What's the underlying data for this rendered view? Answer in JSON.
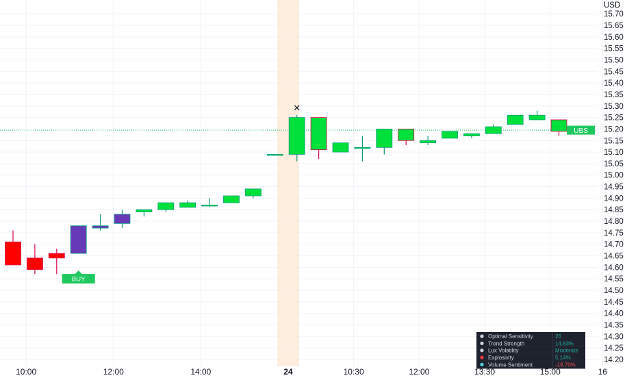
{
  "chart_data": {
    "type": "candlestick",
    "currency": "USD",
    "ylim": [
      14.17,
      15.76
    ],
    "y_ticks": [
      "15.70",
      "15.65",
      "15.60",
      "15.55",
      "15.50",
      "15.45",
      "15.40",
      "15.35",
      "15.30",
      "15.25",
      "15.20",
      "15.15",
      "15.10",
      "15.05",
      "15.00",
      "14.95",
      "14.90",
      "14.85",
      "14.80",
      "14.75",
      "14.70",
      "14.65",
      "14.60",
      "14.55",
      "14.50",
      "14.45",
      "14.40",
      "14.35",
      "14.30",
      "14.25",
      "14.20"
    ],
    "x_ticks": [
      {
        "label": "10:00",
        "index": 0.6,
        "bold": false
      },
      {
        "label": "12:00",
        "index": 4.6,
        "bold": false
      },
      {
        "label": "14:00",
        "index": 8.6,
        "bold": false
      },
      {
        "label": "24",
        "index": 12.6,
        "bold": true
      },
      {
        "label": "10:30",
        "index": 15.6,
        "bold": false
      },
      {
        "label": "12:00",
        "index": 18.6,
        "bold": false
      },
      {
        "label": "13:30",
        "index": 21.6,
        "bold": false
      },
      {
        "label": "15:00",
        "index": 24.6,
        "bold": false
      },
      {
        "label": "16",
        "index": 27.0,
        "bold": false
      }
    ],
    "session_break_index": 12.6,
    "candles": [
      {
        "o": 14.71,
        "h": 14.76,
        "l": 14.61,
        "c": 14.61,
        "color": "red"
      },
      {
        "o": 14.64,
        "h": 14.7,
        "l": 14.57,
        "c": 14.59,
        "color": "red"
      },
      {
        "o": 14.66,
        "h": 14.68,
        "l": 14.57,
        "c": 14.64,
        "color": "red"
      },
      {
        "o": 14.66,
        "h": 14.78,
        "l": 14.66,
        "c": 14.78,
        "color": "purple"
      },
      {
        "o": 14.77,
        "h": 14.83,
        "l": 14.76,
        "c": 14.78,
        "color": "purple"
      },
      {
        "o": 14.79,
        "h": 14.85,
        "l": 14.77,
        "c": 14.83,
        "color": "purple"
      },
      {
        "o": 14.84,
        "h": 14.85,
        "l": 14.82,
        "c": 14.85,
        "color": "green"
      },
      {
        "o": 14.85,
        "h": 14.88,
        "l": 14.84,
        "c": 14.88,
        "color": "green"
      },
      {
        "o": 14.86,
        "h": 14.89,
        "l": 14.86,
        "c": 14.88,
        "color": "green"
      },
      {
        "o": 14.87,
        "h": 14.9,
        "l": 14.86,
        "c": 14.87,
        "color": "green"
      },
      {
        "o": 14.88,
        "h": 14.91,
        "l": 14.88,
        "c": 14.91,
        "color": "green"
      },
      {
        "o": 14.91,
        "h": 14.94,
        "l": 14.9,
        "c": 14.94,
        "color": "green"
      },
      {
        "o": 15.09,
        "h": 15.09,
        "l": 15.09,
        "c": 15.09,
        "color": "green"
      },
      {
        "o": 15.09,
        "h": 15.26,
        "l": 15.06,
        "c": 15.25,
        "color": "green"
      },
      {
        "o": 15.25,
        "h": 15.25,
        "l": 15.07,
        "c": 15.11,
        "color": "green"
      },
      {
        "o": 15.1,
        "h": 15.14,
        "l": 15.1,
        "c": 15.14,
        "color": "green"
      },
      {
        "o": 15.12,
        "h": 15.17,
        "l": 15.06,
        "c": 15.12,
        "color": "green"
      },
      {
        "o": 15.12,
        "h": 15.2,
        "l": 15.09,
        "c": 15.2,
        "color": "green"
      },
      {
        "o": 15.2,
        "h": 15.2,
        "l": 15.13,
        "c": 15.15,
        "color": "green"
      },
      {
        "o": 15.14,
        "h": 15.17,
        "l": 15.13,
        "c": 15.15,
        "color": "green"
      },
      {
        "o": 15.16,
        "h": 15.19,
        "l": 15.16,
        "c": 15.19,
        "color": "green"
      },
      {
        "o": 15.17,
        "h": 15.18,
        "l": 15.16,
        "c": 15.18,
        "color": "green"
      },
      {
        "o": 15.18,
        "h": 15.22,
        "l": 15.18,
        "c": 15.21,
        "color": "green"
      },
      {
        "o": 15.22,
        "h": 15.26,
        "l": 15.22,
        "c": 15.26,
        "color": "green"
      },
      {
        "o": 15.24,
        "h": 15.28,
        "l": 15.24,
        "c": 15.26,
        "color": "green"
      },
      {
        "o": 15.24,
        "h": 15.24,
        "l": 15.17,
        "c": 15.19,
        "color": "green"
      }
    ],
    "colors": {
      "up": "#00e03a",
      "red": "#ff0000",
      "purple": "#673ab7",
      "down_wick": "#e0004d",
      "up_wick": "#089981"
    },
    "current_price_line": 15.195,
    "annotations": [
      {
        "text": "BUY",
        "candle_index": 3,
        "price": 14.55,
        "color": "#1ec85e"
      },
      {
        "text": "UBS",
        "price": 15.195,
        "color": "#1ec85e"
      },
      {
        "text": "✕",
        "candle_index": 13,
        "price": 15.29,
        "color": "#131722"
      }
    ]
  },
  "panel": {
    "rows": [
      {
        "icon": "sensitivity-icon",
        "label": "Optimal Sensitivity",
        "value": "26",
        "value_color": "#26a69a"
      },
      {
        "icon": "trend-icon",
        "label": "Trend Strength",
        "value": "14.83%",
        "value_color": "#26a69a"
      },
      {
        "icon": "volatility-icon",
        "label": "Lux Volatility",
        "value": "Moderate",
        "value_color": "#26a69a"
      },
      {
        "icon": "explosivity-icon",
        "label": "Explosivity",
        "value": "5.14%",
        "value_color": "#26a69a"
      },
      {
        "icon": "volume-icon",
        "label": "Volume Sentiment",
        "value": "-16.70%",
        "value_color": "#ef5350"
      }
    ]
  }
}
